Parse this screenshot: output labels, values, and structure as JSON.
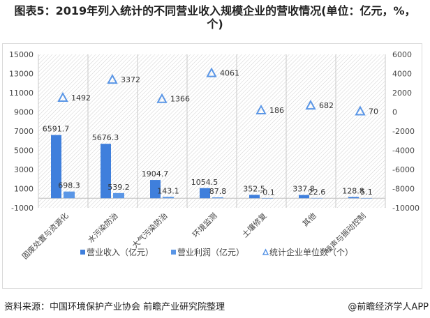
{
  "title": "图表5：2019年列入统计的不同营业收入规模企业的营收情况(单位：亿元，%，个)",
  "footer": {
    "source": "资料来源：中国环境保护产业协会 前瞻产业研究院整理",
    "brand": "@前瞻经济学人APP"
  },
  "colors": {
    "revenue": "#3f7fdc",
    "profit": "#5a96e6",
    "count": "#5a96e6",
    "hatch": "#d0d0d0"
  },
  "chart_data": {
    "type": "bar",
    "title": "图表5：2019年列入统计的不同营业收入规模企业的营收情况(单位：亿元，%，个)",
    "categories": [
      "固废处置与资源化",
      "水污染防治",
      "大气污染防治",
      "环境监测",
      "土壤修复",
      "其他",
      "噪声与振动控制"
    ],
    "series": [
      {
        "name": "营业收入（亿元）",
        "type": "bar",
        "axis": "left",
        "values": [
          6591.7,
          5676.3,
          1904.7,
          1054.5,
          352.5,
          337.8,
          128.8
        ]
      },
      {
        "name": "营业利润（亿元）",
        "type": "bar",
        "axis": "left",
        "values": [
          698.3,
          539.2,
          143.1,
          87.8,
          -0.1,
          22.6,
          5.1
        ]
      },
      {
        "name": "统计企业单位数（个）",
        "type": "scatter",
        "marker": "triangle",
        "axis": "right",
        "values": [
          1492,
          3372,
          1366,
          4061,
          186,
          682,
          70
        ]
      }
    ],
    "ylim_left": [
      -1000,
      15000
    ],
    "yticks_left": [
      -1000,
      1000,
      3000,
      5000,
      7000,
      9000,
      11000,
      13000,
      15000
    ],
    "ylim_right": [
      -10000,
      6000
    ],
    "yticks_right": [
      -10000,
      -8000,
      -6000,
      -4000,
      -2000,
      0,
      2000,
      4000,
      6000
    ],
    "legend": "bottom",
    "grid": false
  }
}
